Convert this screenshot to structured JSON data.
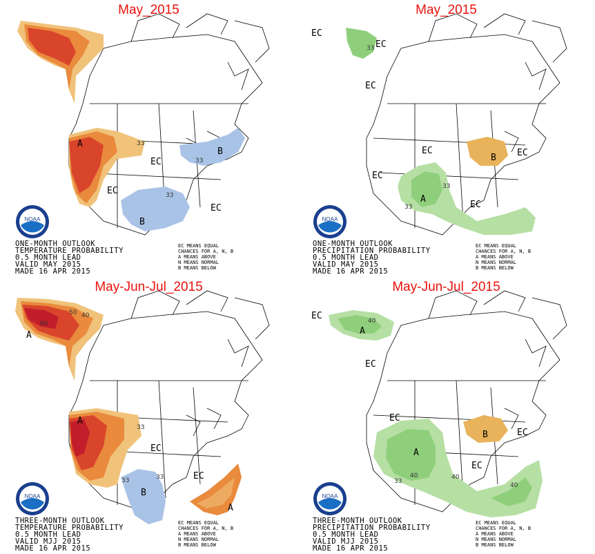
{
  "panels": [
    {
      "variable": "temperature",
      "title": "May_2015",
      "caption": [
        "ONE-MONTH OUTLOOK",
        "TEMPERATURE PROBABILITY",
        "0.5 MONTH LEAD",
        "VALID MAY 2015",
        "MADE 16 APR 2015"
      ],
      "labels": {
        "a": "A",
        "b": "B",
        "ec": "EC",
        "c33": "33"
      }
    },
    {
      "variable": "precipitation",
      "title": "May_2015",
      "caption": [
        "ONE-MONTH OUTLOOK",
        "PRECIPITATION PROBABILITY",
        "0.5 MONTH LEAD",
        "VALID MAY 2015",
        "MADE 16 APR 2015"
      ],
      "labels": {
        "a": "A",
        "b": "B",
        "ec": "EC",
        "c33": "33"
      }
    },
    {
      "variable": "temperature",
      "title": "May-Jun-Jul_2015",
      "caption": [
        "THREE-MONTH OUTLOOK",
        "TEMPERATURE PROBABILITY",
        "0.5 MONTH LEAD",
        "VALID MJJ 2015",
        "MADE 16 APR 2015"
      ],
      "labels": {
        "a": "A",
        "b": "B",
        "ec": "EC",
        "c33": "33",
        "c40": "40",
        "c50": "50",
        "c60": "60"
      }
    },
    {
      "variable": "precipitation",
      "title": "May-Jun-Jul_2015",
      "caption": [
        "THREE-MONTH OUTLOOK",
        "PRECIPITATION PROBABILITY",
        "0.5 MONTH LEAD",
        "VALID MJJ 2015",
        "MADE 16 APR 2015"
      ],
      "labels": {
        "a": "A",
        "b": "B",
        "ec": "EC",
        "c33": "33",
        "c40": "40"
      }
    }
  ],
  "legend": [
    "EC MEANS EQUAL",
    "CHANCES FOR A, N, B",
    "A MEANS ABOVE",
    "N MEANS NORMAL",
    "B MEANS BELOW"
  ],
  "logo_text": "NOAA",
  "colors": {
    "title": "#e8120c",
    "above_temp_light": "#f0c27a",
    "above_temp_mid": "#e98a3c",
    "above_temp_dark": "#d9452b",
    "above_temp_darkest": "#c21d2a",
    "below_temp": "#a9c3e6",
    "above_precip_light": "#b6dfa4",
    "above_precip_mid": "#8fcf7c",
    "below_precip": "#e8b35a"
  }
}
